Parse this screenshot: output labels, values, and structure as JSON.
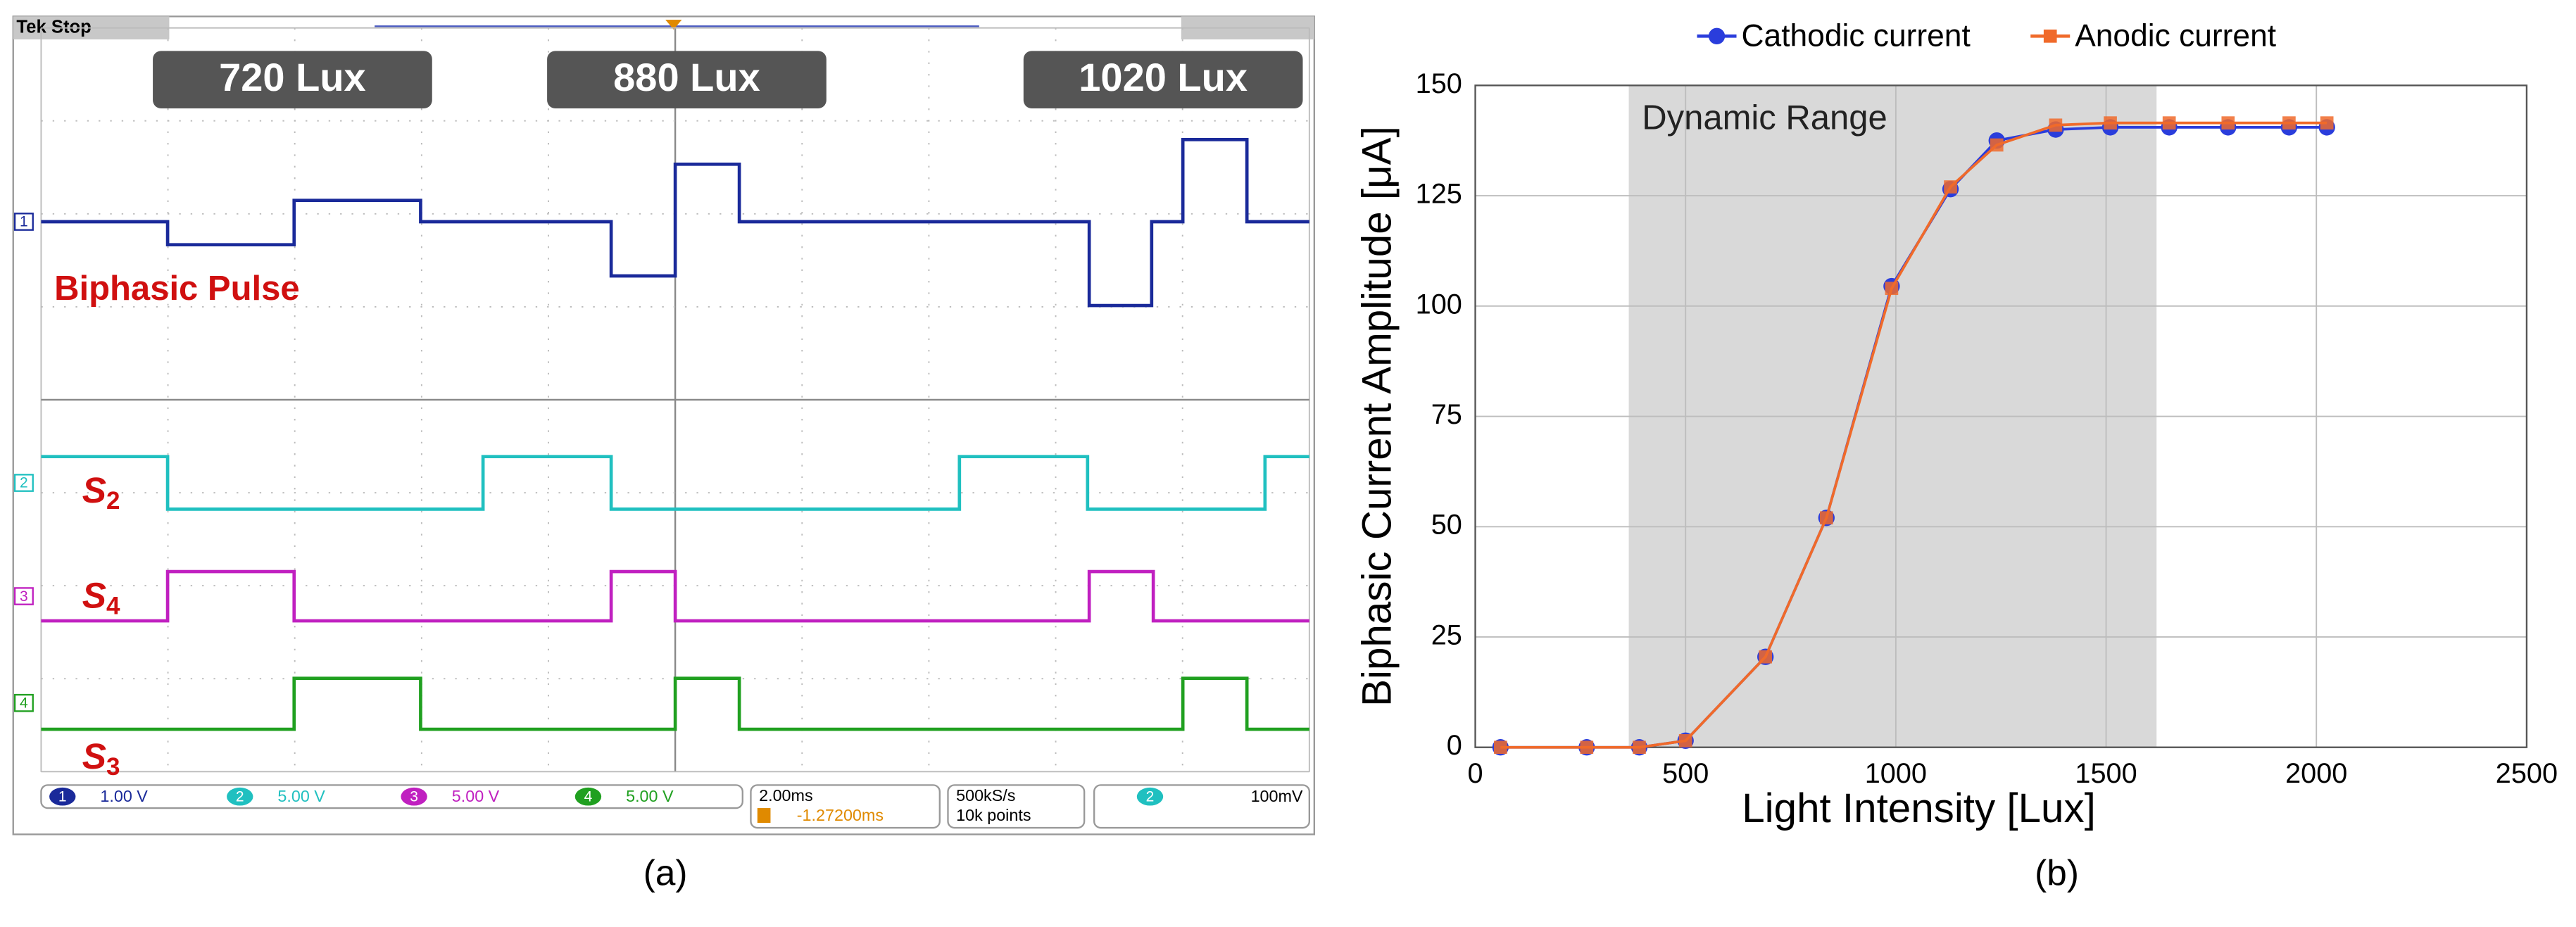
{
  "scope": {
    "status": "Tek Stop",
    "lux_labels": [
      "720 Lux",
      "880 Lux",
      "1020 Lux"
    ],
    "trace_title": "Biphasic Pulse",
    "signals": [
      {
        "main": "S",
        "sub": "2"
      },
      {
        "main": "S",
        "sub": "4"
      },
      {
        "main": "S",
        "sub": "3"
      }
    ],
    "channel_markers": [
      "1",
      "2",
      "3",
      "4"
    ],
    "status_bar": {
      "channels": [
        {
          "number": "1",
          "scale": "1.00 V"
        },
        {
          "number": "2",
          "scale": "5.00 V"
        },
        {
          "number": "3",
          "scale": "5.00 V"
        },
        {
          "number": "4",
          "scale": "5.00 V"
        }
      ],
      "timebase": "2.00ms",
      "trigger_position": "-1.27200ms",
      "sample_rate": "500kS/s",
      "record_length": "10k points",
      "trigger_channel": "2",
      "trigger_level": "100mV"
    },
    "caption": "(a)"
  },
  "chart_data": {
    "type": "line",
    "x_label": "Light Intensity [Lux]",
    "y_label": "Biphasic Current Amplitude [μA]",
    "x": [
      60,
      265,
      390,
      500,
      690,
      835,
      990,
      1130,
      1240,
      1380,
      1510,
      1650,
      1790,
      1935,
      2025
    ],
    "series": [
      {
        "name": "Cathodic current",
        "color": "#2a3ddc",
        "marker": "circle",
        "values": [
          0,
          0,
          0,
          1.5,
          20.5,
          52,
          104.5,
          126.5,
          137.5,
          140,
          140.5,
          140.5,
          140.5,
          140.5,
          140.5
        ]
      },
      {
        "name": "Anodic current",
        "color": "#f06a2a",
        "marker": "square",
        "values": [
          0,
          0,
          0,
          1.5,
          20.5,
          52,
          104,
          127,
          136.5,
          141,
          141.5,
          141.5,
          141.5,
          141.5,
          141.5
        ]
      }
    ],
    "xlim": [
      0,
      2500
    ],
    "xticks": [
      0,
      500,
      1000,
      1500,
      2000,
      2500
    ],
    "ylim": [
      0,
      150
    ],
    "yticks": [
      0,
      25,
      50,
      75,
      100,
      125,
      150
    ],
    "grid": true,
    "legend": "top",
    "shaded_range": [
      365,
      1620
    ],
    "shaded_label": "Dynamic Range",
    "caption": "(b)"
  }
}
